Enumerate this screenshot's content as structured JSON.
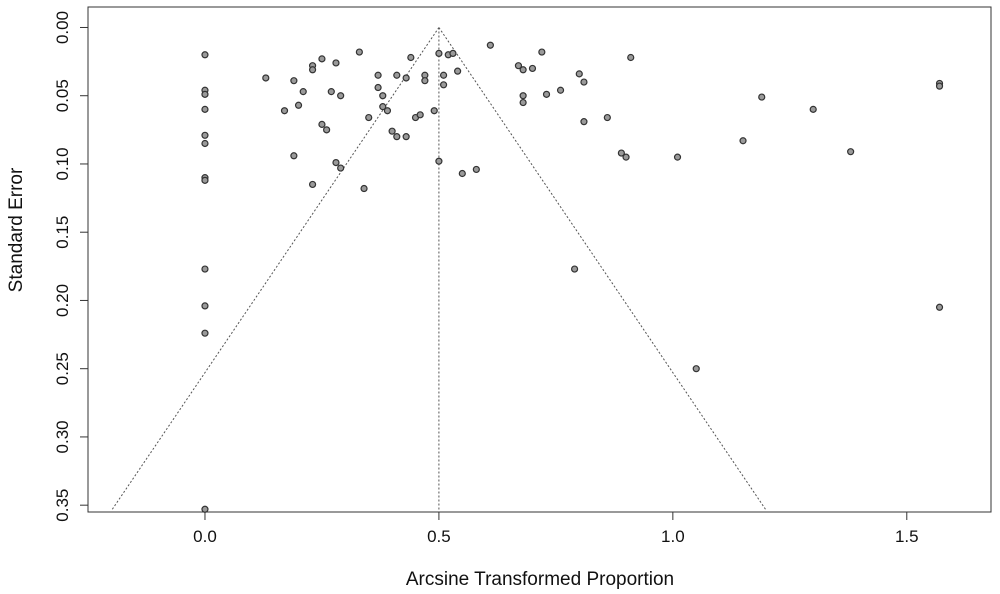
{
  "chart_data": {
    "type": "scatter",
    "title": "",
    "xlabel": "Arcsine Transformed Proportion",
    "ylabel": "Standard Error",
    "xlim": [
      -0.25,
      1.68
    ],
    "ylim": [
      0.355,
      -0.015
    ],
    "y_axis_inverted": true,
    "grid": false,
    "legend": "none",
    "x_ticks": [
      0.0,
      0.5,
      1.0,
      1.5
    ],
    "x_tick_labels": [
      "0.0",
      "0.5",
      "1.0",
      "1.5"
    ],
    "y_ticks": [
      0.0,
      0.05,
      0.1,
      0.15,
      0.2,
      0.25,
      0.3,
      0.35
    ],
    "y_tick_labels": [
      "0.00",
      "0.05",
      "0.10",
      "0.15",
      "0.20",
      "0.25",
      "0.30",
      "0.35"
    ],
    "point_fill": "#9a9a9a",
    "point_stroke": "#333333",
    "summary_estimate": 0.5,
    "funnel": {
      "apex": [
        0.5,
        0.0
      ],
      "left_base": [
        -0.2,
        0.354
      ],
      "right_base": [
        1.2,
        0.354
      ]
    },
    "points": [
      [
        0.0,
        0.02
      ],
      [
        0.0,
        0.046
      ],
      [
        0.0,
        0.049
      ],
      [
        0.0,
        0.06
      ],
      [
        0.0,
        0.079
      ],
      [
        0.0,
        0.085
      ],
      [
        0.0,
        0.11
      ],
      [
        0.0,
        0.112
      ],
      [
        0.0,
        0.177
      ],
      [
        0.0,
        0.204
      ],
      [
        0.0,
        0.224
      ],
      [
        0.0,
        0.353
      ],
      [
        0.13,
        0.037
      ],
      [
        0.17,
        0.061
      ],
      [
        0.19,
        0.039
      ],
      [
        0.19,
        0.094
      ],
      [
        0.2,
        0.057
      ],
      [
        0.21,
        0.047
      ],
      [
        0.23,
        0.028
      ],
      [
        0.23,
        0.031
      ],
      [
        0.23,
        0.115
      ],
      [
        0.25,
        0.023
      ],
      [
        0.25,
        0.071
      ],
      [
        0.26,
        0.075
      ],
      [
        0.27,
        0.047
      ],
      [
        0.28,
        0.026
      ],
      [
        0.28,
        0.099
      ],
      [
        0.29,
        0.05
      ],
      [
        0.29,
        0.103
      ],
      [
        0.33,
        0.018
      ],
      [
        0.34,
        0.118
      ],
      [
        0.35,
        0.066
      ],
      [
        0.37,
        0.035
      ],
      [
        0.37,
        0.044
      ],
      [
        0.38,
        0.05
      ],
      [
        0.38,
        0.058
      ],
      [
        0.39,
        0.061
      ],
      [
        0.4,
        0.076
      ],
      [
        0.41,
        0.035
      ],
      [
        0.41,
        0.08
      ],
      [
        0.43,
        0.037
      ],
      [
        0.43,
        0.08
      ],
      [
        0.44,
        0.022
      ],
      [
        0.45,
        0.066
      ],
      [
        0.46,
        0.064
      ],
      [
        0.47,
        0.035
      ],
      [
        0.47,
        0.039
      ],
      [
        0.49,
        0.061
      ],
      [
        0.5,
        0.019
      ],
      [
        0.5,
        0.098
      ],
      [
        0.51,
        0.035
      ],
      [
        0.51,
        0.042
      ],
      [
        0.52,
        0.02
      ],
      [
        0.53,
        0.019
      ],
      [
        0.54,
        0.032
      ],
      [
        0.55,
        0.107
      ],
      [
        0.58,
        0.104
      ],
      [
        0.61,
        0.013
      ],
      [
        0.67,
        0.028
      ],
      [
        0.68,
        0.031
      ],
      [
        0.68,
        0.05
      ],
      [
        0.68,
        0.055
      ],
      [
        0.7,
        0.03
      ],
      [
        0.72,
        0.018
      ],
      [
        0.73,
        0.049
      ],
      [
        0.76,
        0.046
      ],
      [
        0.79,
        0.177
      ],
      [
        0.8,
        0.034
      ],
      [
        0.81,
        0.04
      ],
      [
        0.81,
        0.069
      ],
      [
        0.86,
        0.066
      ],
      [
        0.89,
        0.092
      ],
      [
        0.9,
        0.095
      ],
      [
        0.91,
        0.022
      ],
      [
        1.01,
        0.095
      ],
      [
        1.05,
        0.25
      ],
      [
        1.15,
        0.083
      ],
      [
        1.19,
        0.051
      ],
      [
        1.3,
        0.06
      ],
      [
        1.38,
        0.091
      ],
      [
        1.57,
        0.041
      ],
      [
        1.57,
        0.043
      ],
      [
        1.57,
        0.205
      ]
    ]
  }
}
